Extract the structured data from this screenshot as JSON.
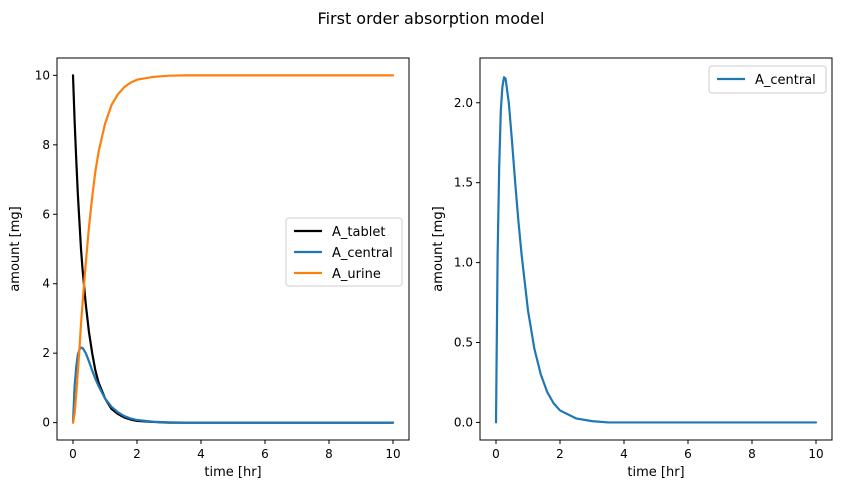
{
  "figure": {
    "title": "First order absorption model"
  },
  "chart_data": [
    {
      "type": "line",
      "xlabel": "time [hr]",
      "ylabel": "amount [mg]",
      "xlim": [
        -0.5,
        10.5
      ],
      "ylim": [
        -0.5,
        10.5
      ],
      "xticks": [
        0,
        2,
        4,
        6,
        8,
        10
      ],
      "yticks": [
        0,
        2,
        4,
        6,
        8,
        10
      ],
      "grid": false,
      "legend_position": "center-right",
      "x": [
        0,
        0.05,
        0.1,
        0.15,
        0.2,
        0.25,
        0.3,
        0.4,
        0.5,
        0.6,
        0.7,
        0.8,
        1.0,
        1.2,
        1.4,
        1.6,
        1.8,
        2.0,
        2.5,
        3.0,
        3.5,
        4.0,
        5.0,
        6.0,
        7.0,
        8.0,
        9.0,
        10.0
      ],
      "series": [
        {
          "name": "A_tablet",
          "color": "#000000",
          "values": [
            10,
            8.7,
            7.6,
            6.6,
            5.8,
            5.0,
            4.4,
            3.4,
            2.6,
            2.0,
            1.5,
            1.15,
            0.7,
            0.4,
            0.25,
            0.15,
            0.09,
            0.05,
            0.02,
            0.0,
            0.0,
            0.0,
            0.0,
            0.0,
            0.0,
            0.0,
            0.0,
            0.0
          ]
        },
        {
          "name": "A_central",
          "color": "#1f77b4",
          "values": [
            0,
            1.04,
            1.6,
            1.95,
            2.1,
            2.16,
            2.15,
            2.0,
            1.76,
            1.5,
            1.26,
            1.05,
            0.7,
            0.46,
            0.3,
            0.19,
            0.12,
            0.075,
            0.025,
            0.008,
            0.0,
            0.0,
            0.0,
            0.0,
            0.0,
            0.0,
            0.0,
            0.0
          ]
        },
        {
          "name": "A_urine",
          "color": "#ff7f0e",
          "values": [
            0,
            0.26,
            0.8,
            1.45,
            2.1,
            2.84,
            3.45,
            4.6,
            5.64,
            6.5,
            7.24,
            7.8,
            8.6,
            9.14,
            9.45,
            9.66,
            9.79,
            9.875,
            9.955,
            9.99,
            10.0,
            10.0,
            10.0,
            10.0,
            10.0,
            10.0,
            10.0,
            10.0
          ]
        }
      ]
    },
    {
      "type": "line",
      "xlabel": "time [hr]",
      "ylabel": "amount [mg]",
      "xlim": [
        -0.5,
        10.5
      ],
      "ylim": [
        -0.11,
        2.28
      ],
      "xticks": [
        0,
        2,
        4,
        6,
        8,
        10
      ],
      "yticks": [
        0.0,
        0.5,
        1.0,
        1.5,
        2.0
      ],
      "ytick_labels": [
        "0.0",
        "0.5",
        "1.0",
        "1.5",
        "2.0"
      ],
      "grid": false,
      "legend_position": "upper-right",
      "x": [
        0,
        0.05,
        0.1,
        0.15,
        0.2,
        0.25,
        0.3,
        0.4,
        0.5,
        0.6,
        0.7,
        0.8,
        1.0,
        1.2,
        1.4,
        1.6,
        1.8,
        2.0,
        2.5,
        3.0,
        3.5,
        4.0,
        5.0,
        6.0,
        7.0,
        8.0,
        9.0,
        10.0
      ],
      "series": [
        {
          "name": "A_central",
          "color": "#1f77b4",
          "values": [
            0,
            1.04,
            1.6,
            1.95,
            2.1,
            2.16,
            2.15,
            2.0,
            1.76,
            1.5,
            1.26,
            1.05,
            0.7,
            0.46,
            0.3,
            0.19,
            0.12,
            0.075,
            0.025,
            0.008,
            0.0,
            0.0,
            0.0,
            0.0,
            0.0,
            0.0,
            0.0,
            0.0
          ]
        }
      ]
    }
  ]
}
